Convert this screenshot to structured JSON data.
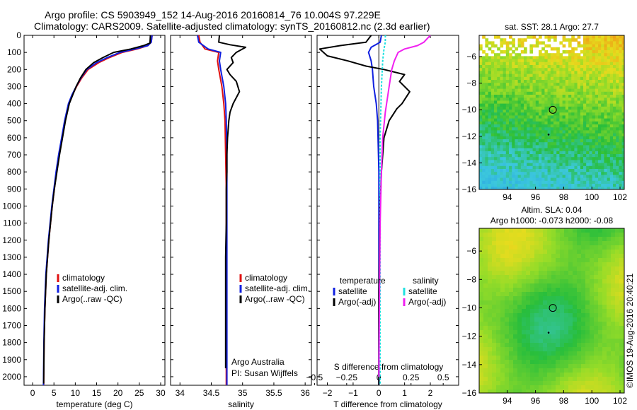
{
  "header": {
    "line1": "Argo profile: CS 5903949_152 14-Aug-2016 20160814_76 10.004S 97.229E",
    "line2": "Climatology: CARS2009. Satellite-adjusted climatology: synTS_20160812.nc (2.3d earlier)"
  },
  "side_stamp": "©IMOS 19-Aug-2016 20:40:21",
  "colors": {
    "climatology": "#e01010",
    "satellite": "#1020e0",
    "argo": "#000000",
    "sal_satellite": "#20e0e0",
    "sal_argo": "#f020f0"
  },
  "chart_data": [
    {
      "id": "temperature",
      "type": "line",
      "xlabel": "temperature (deg C)",
      "ylabel": "",
      "xlim": [
        -2,
        31
      ],
      "ylim": [
        2050,
        0
      ],
      "xticks": [
        0,
        5,
        10,
        15,
        20,
        25,
        30
      ],
      "yticks": [
        0,
        100,
        200,
        300,
        400,
        500,
        600,
        700,
        800,
        900,
        1000,
        1100,
        1200,
        1300,
        1400,
        1500,
        1600,
        1700,
        1800,
        1900,
        2000
      ],
      "legend": [
        "climatology",
        "satellite-adj. clim.",
        "Argo(..raw -QC)"
      ],
      "series": [
        {
          "name": "climatology",
          "color_key": "climatology",
          "x": [
            28.0,
            27.8,
            27.0,
            24.5,
            21.0,
            18.0,
            15.5,
            13.0,
            11.5,
            10.3,
            9.3,
            8.5,
            7.6,
            6.9,
            6.2,
            5.6,
            5.1,
            4.6,
            4.2,
            3.8,
            3.5,
            3.2,
            2.9,
            2.7,
            2.6
          ],
          "y": [
            0,
            40,
            60,
            80,
            100,
            130,
            160,
            200,
            250,
            300,
            350,
            400,
            500,
            600,
            700,
            800,
            900,
            1000,
            1100,
            1200,
            1300,
            1400,
            1600,
            1800,
            2050
          ]
        },
        {
          "name": "satellite-adj. clim.",
          "color_key": "satellite",
          "x": [
            28.0,
            27.8,
            27.0,
            24.0,
            20.5,
            17.5,
            15.0,
            12.7,
            11.3,
            10.2,
            9.2,
            8.4,
            7.5,
            6.8,
            6.1,
            5.5,
            5.0,
            4.5,
            4.1,
            3.7,
            3.4,
            3.1,
            2.8,
            2.65,
            2.55
          ],
          "y": [
            0,
            40,
            60,
            80,
            100,
            130,
            160,
            200,
            250,
            300,
            350,
            400,
            500,
            600,
            700,
            800,
            900,
            1000,
            1100,
            1200,
            1300,
            1400,
            1600,
            1800,
            2050
          ]
        },
        {
          "name": "Argo(..raw -QC)",
          "color_key": "argo",
          "x": [
            27.6,
            27.5,
            26.0,
            23.0,
            19.0,
            16.5,
            14.3,
            12.5,
            11.2,
            10.2,
            9.4,
            8.6,
            7.7,
            7.0,
            6.3,
            5.7,
            5.1,
            4.6,
            4.2,
            3.8,
            3.5,
            3.2,
            2.9,
            2.7,
            2.6
          ],
          "y": [
            0,
            45,
            60,
            80,
            100,
            130,
            160,
            200,
            250,
            300,
            350,
            400,
            500,
            600,
            700,
            800,
            900,
            1000,
            1100,
            1200,
            1300,
            1400,
            1600,
            1800,
            2040
          ]
        }
      ]
    },
    {
      "id": "salinity",
      "type": "line",
      "xlabel": "salinity",
      "ylabel": "",
      "xlim": [
        33.85,
        36.1
      ],
      "ylim": [
        2050,
        0
      ],
      "xticks": [
        34,
        34.5,
        35,
        35.5,
        36
      ],
      "legend": [
        "climatology",
        "satellite-adj. clim.",
        "Argo(..raw -QC)"
      ],
      "annotation": [
        "Argo Australia",
        "PI: Susan Wijffels"
      ],
      "series": [
        {
          "name": "climatology",
          "color_key": "climatology",
          "x": [
            34.3,
            34.32,
            34.4,
            34.62,
            34.6,
            34.62,
            34.67,
            34.7,
            34.72,
            34.73,
            34.74,
            34.74,
            34.74,
            34.74
          ],
          "y": [
            0,
            40,
            80,
            100,
            150,
            200,
            300,
            400,
            500,
            700,
            900,
            1200,
            1600,
            2050
          ]
        },
        {
          "name": "satellite-adj. clim.",
          "color_key": "satellite",
          "x": [
            34.28,
            34.3,
            34.45,
            34.65,
            34.63,
            34.65,
            34.7,
            34.73,
            34.74,
            34.75,
            34.75,
            34.75,
            34.75,
            34.75
          ],
          "y": [
            0,
            40,
            80,
            100,
            150,
            200,
            300,
            400,
            500,
            700,
            900,
            1200,
            1600,
            2050
          ]
        },
        {
          "name": "Argo(..raw -QC)",
          "color_key": "argo",
          "x": [
            34.63,
            34.62,
            34.8,
            35.05,
            34.9,
            34.82,
            34.85,
            34.75,
            34.8,
            34.9,
            34.95,
            34.85,
            34.8,
            34.78,
            34.76,
            34.75,
            34.75,
            34.74,
            34.74,
            34.73,
            34.73,
            34.73
          ],
          "y": [
            0,
            40,
            55,
            70,
            100,
            130,
            160,
            200,
            230,
            270,
            330,
            400,
            450,
            500,
            600,
            700,
            800,
            900,
            1100,
            1300,
            1600,
            1950
          ]
        }
      ]
    },
    {
      "id": "difference",
      "type": "line",
      "xlabel": "T difference from climatology",
      "xlabel2": "S difference from climatology",
      "xlim": [
        -2.4,
        3.1
      ],
      "ylim": [
        2050,
        0
      ],
      "xticks": [
        -2,
        -1,
        0,
        1,
        2
      ],
      "xtick_labels": [
        "−2",
        "−1",
        "0",
        "1",
        "2"
      ],
      "sticks": [
        -0.5,
        -0.25,
        0,
        0.25,
        0.5
      ],
      "stick_labels": [
        "−0.5",
        "−0.25",
        "0",
        "0.25",
        "0.5"
      ],
      "salinity_scale": 5,
      "legend_titles": [
        "temperature",
        "salinity"
      ],
      "legend": [
        "satellite",
        "Argo(-adj)",
        "satellite",
        "Argo(-adj)"
      ],
      "series": [
        {
          "name": "satellite",
          "color_key": "satellite",
          "dash": false,
          "x": [
            0.1,
            0.05,
            -0.3,
            -0.4,
            -0.3,
            -0.25,
            -0.2,
            -0.1,
            -0.05,
            0,
            0,
            0
          ],
          "y": [
            0,
            40,
            70,
            100,
            150,
            200,
            300,
            400,
            500,
            800,
            1200,
            2050
          ]
        },
        {
          "name": "Argo(-adj)",
          "color_key": "argo",
          "dash": false,
          "x": [
            -0.3,
            -0.5,
            -1.5,
            -2.3,
            -2.0,
            -1.2,
            -0.5,
            0.2,
            1.0,
            0.8,
            1.2,
            0.9,
            0.7,
            0.4,
            0.2,
            0.1,
            0.05,
            0,
            0
          ],
          "y": [
            0,
            40,
            60,
            80,
            120,
            150,
            180,
            200,
            230,
            270,
            330,
            400,
            430,
            500,
            600,
            800,
            1000,
            1500,
            2050
          ]
        },
        {
          "name": "satellite",
          "color_key": "sal_satellite",
          "dash": true,
          "x": [
            0.05,
            0.05,
            0.04,
            0.03,
            0.02,
            0.01,
            0.01,
            0.01
          ],
          "y": [
            0,
            40,
            80,
            150,
            300,
            600,
            1200,
            2050
          ]
        },
        {
          "name": "Argo(-adj)",
          "color_key": "sal_argo",
          "dash": false,
          "x": [
            0.4,
            0.35,
            0.3,
            0.2,
            0.15,
            0.12,
            0.1,
            0.08,
            0.06,
            0.05,
            0.03,
            0.02,
            0.01,
            0.005,
            0
          ],
          "y": [
            0,
            40,
            60,
            80,
            100,
            150,
            200,
            300,
            400,
            450,
            600,
            800,
            1100,
            1500,
            2000
          ]
        }
      ]
    },
    {
      "id": "sst_map",
      "type": "heatmap",
      "title": "sat. SST: 28.1  Argo: 27.7",
      "xlim": [
        92,
        102.3
      ],
      "ylim": [
        -16,
        -4.4
      ],
      "xticks": [
        94,
        96,
        98,
        100,
        102
      ],
      "yticks": [
        -6,
        -8,
        -10,
        -12,
        -14,
        -16
      ],
      "marker": [
        97.229,
        -10.004
      ]
    },
    {
      "id": "sla_map",
      "type": "heatmap",
      "title": "Altim. SLA: 0.04",
      "subtitle": "Argo h1000: -0.073 h2000: -0.08",
      "xlim": [
        92,
        102.3
      ],
      "ylim": [
        -16,
        -4.4
      ],
      "xticks": [
        94,
        96,
        98,
        100,
        102
      ],
      "yticks": [
        -6,
        -8,
        -10,
        -12,
        -14,
        -16
      ],
      "marker": [
        97.229,
        -10.004
      ]
    }
  ]
}
